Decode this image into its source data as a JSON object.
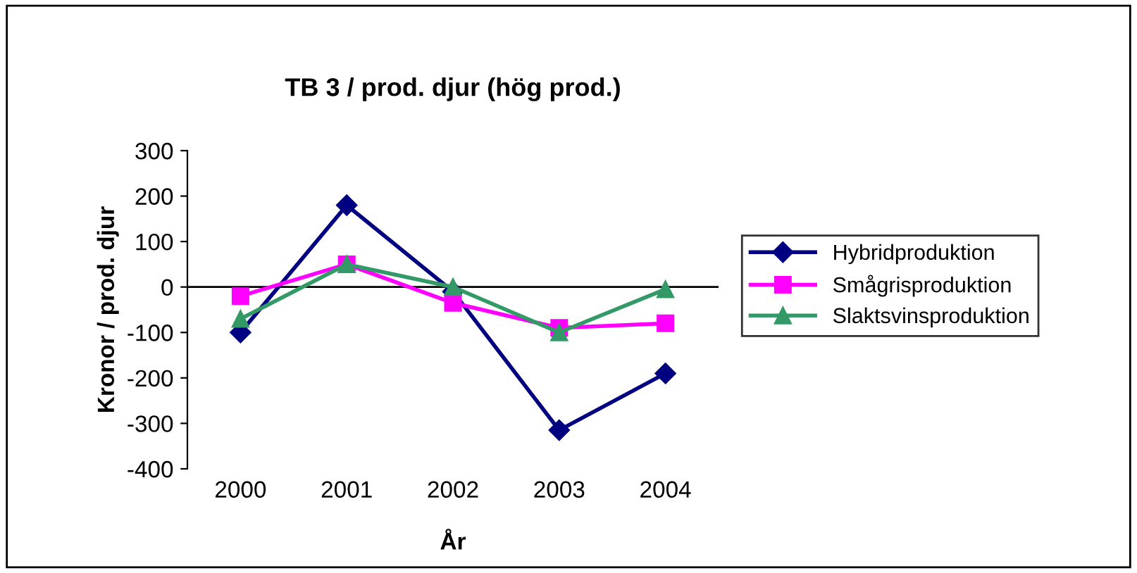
{
  "chart_data": {
    "type": "line",
    "title": "TB 3 / prod. djur (hög prod.)",
    "xlabel": "År",
    "ylabel": "Kronor / prod. djur",
    "categories": [
      "2000",
      "2001",
      "2002",
      "2003",
      "2004"
    ],
    "series": [
      {
        "name": "Hybridproduktion",
        "color": "#000080",
        "marker": "diamond",
        "values": [
          -100,
          180,
          -10,
          -315,
          -190
        ]
      },
      {
        "name": "Smågrisproduktion",
        "color": "#ff00ff",
        "marker": "square",
        "values": [
          -20,
          50,
          -35,
          -90,
          -80
        ]
      },
      {
        "name": "Slaktsvinsproduktion",
        "color": "#339966",
        "marker": "triangle",
        "values": [
          -70,
          50,
          0,
          -100,
          -5
        ]
      }
    ],
    "ylim": [
      -400,
      300
    ],
    "yticks": [
      -400,
      -300,
      -200,
      -100,
      0,
      100,
      200,
      300
    ],
    "ref_lines": [
      {
        "axis": "y",
        "value": 0,
        "color": "#000000"
      }
    ],
    "grid": false,
    "legend": "right",
    "line_style": "solid"
  }
}
